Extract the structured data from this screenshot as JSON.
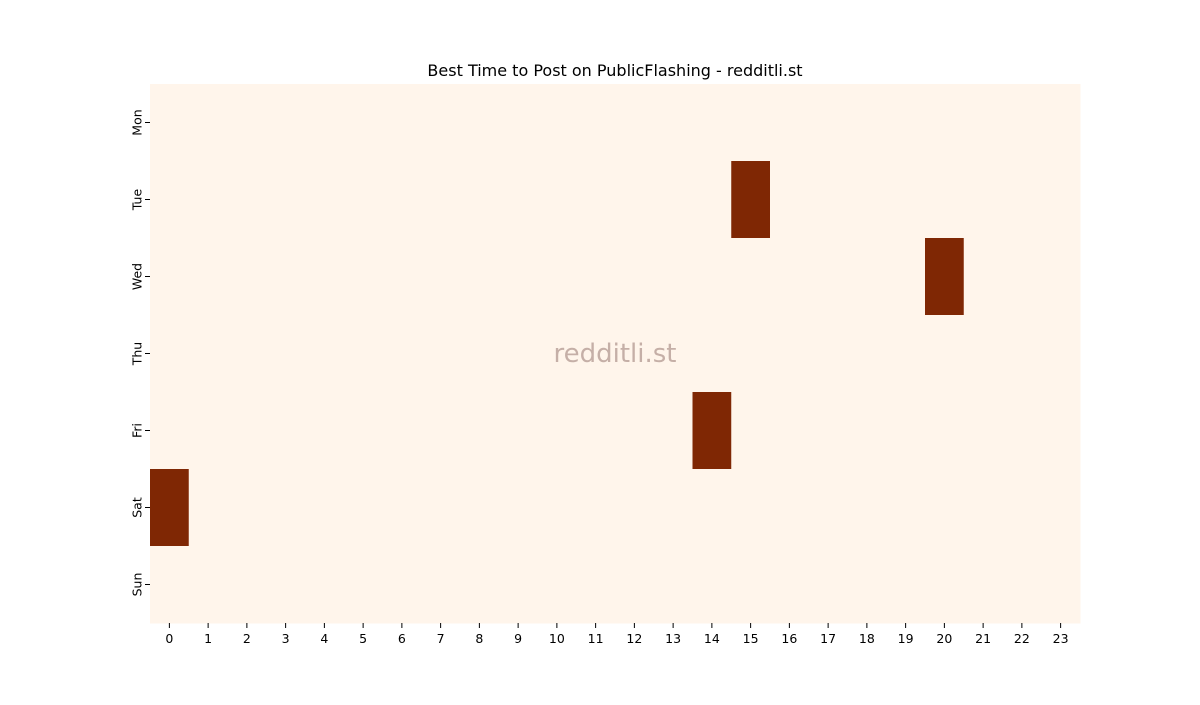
{
  "chart_data": {
    "type": "heatmap",
    "title": "Best Time to Post on PublicFlashing - redditli.st",
    "watermark": "redditli.st",
    "xlabel": "",
    "ylabel": "",
    "x_categories": [
      "0",
      "1",
      "2",
      "3",
      "4",
      "5",
      "6",
      "7",
      "8",
      "9",
      "10",
      "11",
      "12",
      "13",
      "14",
      "15",
      "16",
      "17",
      "18",
      "19",
      "20",
      "21",
      "22",
      "23"
    ],
    "y_categories": [
      "Mon",
      "Tue",
      "Wed",
      "Thu",
      "Fri",
      "Sat",
      "Sun"
    ],
    "values": [
      [
        0,
        0,
        0,
        0,
        0,
        0,
        0,
        0,
        0,
        0,
        0,
        0,
        0,
        0,
        0,
        0,
        0,
        0,
        0,
        0,
        0,
        0,
        0,
        0
      ],
      [
        0,
        0,
        0,
        0,
        0,
        0,
        0,
        0,
        0,
        0,
        0,
        0,
        0,
        0,
        0,
        1,
        0,
        0,
        0,
        0,
        0,
        0,
        0,
        0
      ],
      [
        0,
        0,
        0,
        0,
        0,
        0,
        0,
        0,
        0,
        0,
        0,
        0,
        0,
        0,
        0,
        0,
        0,
        0,
        0,
        0,
        1,
        0,
        0,
        0
      ],
      [
        0,
        0,
        0,
        0,
        0,
        0,
        0,
        0,
        0,
        0,
        0,
        0,
        0,
        0,
        0,
        0,
        0,
        0,
        0,
        0,
        0,
        0,
        0,
        0
      ],
      [
        0,
        0,
        0,
        0,
        0,
        0,
        0,
        0,
        0,
        0,
        0,
        0,
        0,
        0,
        1,
        0,
        0,
        0,
        0,
        0,
        0,
        0,
        0,
        0
      ],
      [
        1,
        0,
        0,
        0,
        0,
        0,
        0,
        0,
        0,
        0,
        0,
        0,
        0,
        0,
        0,
        0,
        0,
        0,
        0,
        0,
        0,
        0,
        0,
        0
      ],
      [
        0,
        0,
        0,
        0,
        0,
        0,
        0,
        0,
        0,
        0,
        0,
        0,
        0,
        0,
        0,
        0,
        0,
        0,
        0,
        0,
        0,
        0,
        0,
        0
      ]
    ],
    "colors": {
      "low": "#fff5eb",
      "high": "#7f2704"
    },
    "legend": "none",
    "grid": false
  }
}
